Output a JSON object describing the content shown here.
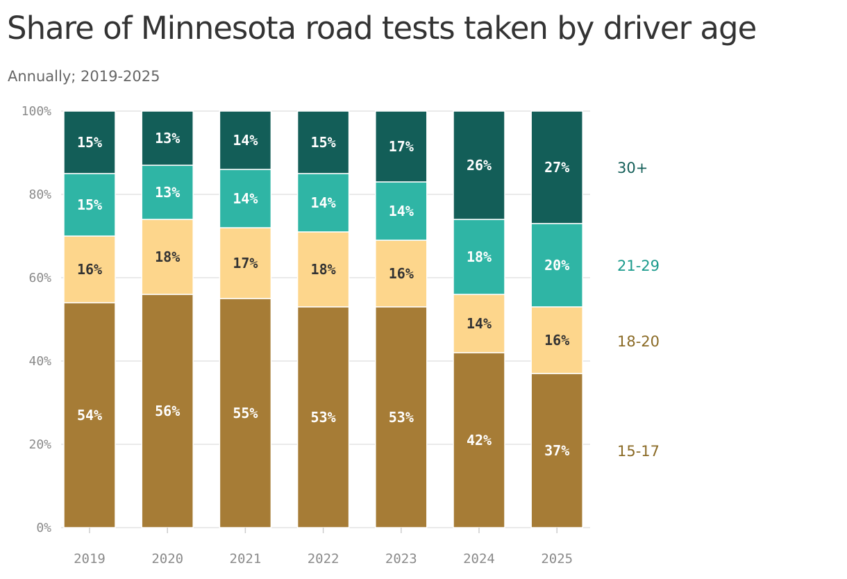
{
  "title": "Share of Minnesota road tests taken by driver age",
  "subtitle": "Annually; 2019-2025",
  "chart_data": {
    "type": "bar",
    "stacked": true,
    "categories": [
      "2019",
      "2020",
      "2021",
      "2022",
      "2023",
      "2024",
      "2025"
    ],
    "series": [
      {
        "name": "15-17",
        "color": "#a67c36",
        "label_color": "#ffffff",
        "values": [
          54,
          56,
          55,
          53,
          53,
          42,
          37
        ]
      },
      {
        "name": "18-20",
        "color": "#fdd68c",
        "label_color": "#333333",
        "values": [
          16,
          18,
          17,
          18,
          16,
          14,
          16
        ]
      },
      {
        "name": "21-29",
        "color": "#2fb5a5",
        "label_color": "#ffffff",
        "values": [
          15,
          13,
          14,
          14,
          14,
          18,
          20
        ]
      },
      {
        "name": "30+",
        "color": "#135e58",
        "label_color": "#ffffff",
        "values": [
          15,
          13,
          14,
          15,
          17,
          26,
          27
        ]
      }
    ],
    "legend_colors": {
      "15-17": "#8a6a25",
      "18-20": "#8a6a25",
      "21-29": "#1a9a8c",
      "30+": "#135e58"
    },
    "ylim": [
      0,
      100
    ],
    "yticks": [
      0,
      20,
      40,
      60,
      80,
      100
    ],
    "ytick_suffix": "%",
    "grid": true,
    "legend_placement": "right"
  }
}
